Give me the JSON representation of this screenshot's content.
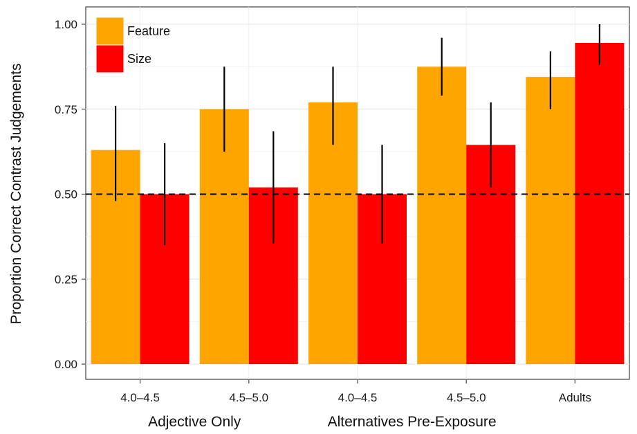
{
  "chart_data": {
    "type": "bar",
    "ylabel": "Proportion Correct Contrast Judgements",
    "ylim": [
      0,
      1.04
    ],
    "yticks": [
      "0.00",
      "0.25",
      "0.50",
      "0.75",
      "1.00"
    ],
    "ytick_values": [
      0,
      0.25,
      0.5,
      0.75,
      1.0
    ],
    "grid": true,
    "legend_position": "top-left",
    "reference_line": 0.5,
    "categories": [
      "4.0–4.5",
      "4.5–5.0",
      "4.0–4.5",
      "4.5–5.0",
      "Adults"
    ],
    "group_labels": [
      "Adjective Only",
      "Alternatives Pre-Exposure"
    ],
    "series": [
      {
        "name": "Feature",
        "color": "#FFA500",
        "values": [
          0.63,
          0.75,
          0.77,
          0.875,
          0.845
        ],
        "error_low": [
          0.48,
          0.625,
          0.645,
          0.79,
          0.75
        ],
        "error_high": [
          0.76,
          0.875,
          0.875,
          0.96,
          0.92
        ]
      },
      {
        "name": "Size",
        "color": "#FF0000",
        "values": [
          0.5,
          0.52,
          0.5,
          0.645,
          0.945
        ],
        "error_low": [
          0.35,
          0.355,
          0.355,
          0.52,
          0.88
        ],
        "error_high": [
          0.65,
          0.685,
          0.645,
          0.77,
          1.0
        ]
      }
    ]
  }
}
